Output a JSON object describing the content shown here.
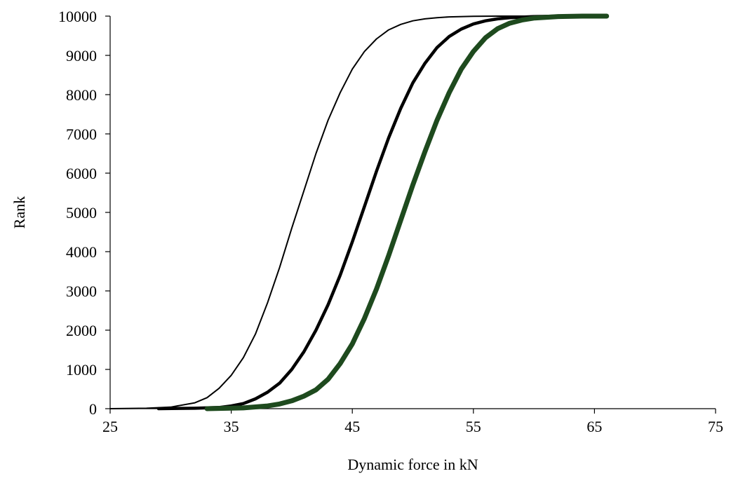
{
  "chart_data": {
    "type": "line",
    "title": "",
    "xlabel": "Dynamic force in kN",
    "ylabel": "Rank",
    "xlim": [
      25,
      75
    ],
    "ylim": [
      0,
      10000
    ],
    "xticks": [
      "25",
      "35",
      "45",
      "55",
      "65",
      "75"
    ],
    "yticks": [
      "0",
      "1000",
      "2000",
      "3000",
      "4000",
      "5000",
      "6000",
      "7000",
      "8000",
      "9000",
      "10000"
    ],
    "grid": false,
    "legend": "none",
    "series": [
      {
        "color": "#000000",
        "weight": "thin",
        "x": [
          25,
          28,
          30,
          32,
          33,
          34,
          35,
          36,
          37,
          38,
          39,
          40,
          41,
          42,
          43,
          44,
          45,
          46,
          47,
          48,
          49,
          50,
          51,
          52,
          53,
          55,
          57,
          60,
          62
        ],
        "y": [
          0,
          10,
          40,
          150,
          280,
          520,
          850,
          1300,
          1900,
          2700,
          3600,
          4600,
          5550,
          6500,
          7350,
          8050,
          8650,
          9100,
          9420,
          9650,
          9790,
          9880,
          9930,
          9960,
          9980,
          9995,
          10000,
          10000,
          10000
        ]
      },
      {
        "color": "#000000",
        "weight": "medium",
        "x": [
          29,
          32,
          34,
          35,
          36,
          37,
          38,
          39,
          40,
          41,
          42,
          43,
          44,
          45,
          46,
          47,
          48,
          49,
          50,
          51,
          52,
          53,
          54,
          55,
          56,
          57,
          58,
          60,
          62,
          64
        ],
        "y": [
          0,
          10,
          30,
          70,
          130,
          250,
          420,
          650,
          1000,
          1450,
          2000,
          2650,
          3400,
          4250,
          5150,
          6050,
          6900,
          7650,
          8300,
          8800,
          9200,
          9480,
          9670,
          9800,
          9880,
          9930,
          9960,
          9990,
          10000,
          10000
        ]
      },
      {
        "color": "#1e4a1e",
        "weight": "thick",
        "x": [
          33,
          36,
          38,
          39,
          40,
          41,
          42,
          43,
          44,
          45,
          46,
          47,
          48,
          49,
          50,
          51,
          52,
          53,
          54,
          55,
          56,
          57,
          58,
          59,
          60,
          62,
          64,
          66
        ],
        "y": [
          0,
          20,
          70,
          120,
          200,
          320,
          480,
          750,
          1150,
          1650,
          2300,
          3050,
          3900,
          4800,
          5700,
          6550,
          7350,
          8050,
          8650,
          9100,
          9450,
          9680,
          9820,
          9900,
          9950,
          9990,
          10000,
          10000
        ]
      }
    ]
  }
}
